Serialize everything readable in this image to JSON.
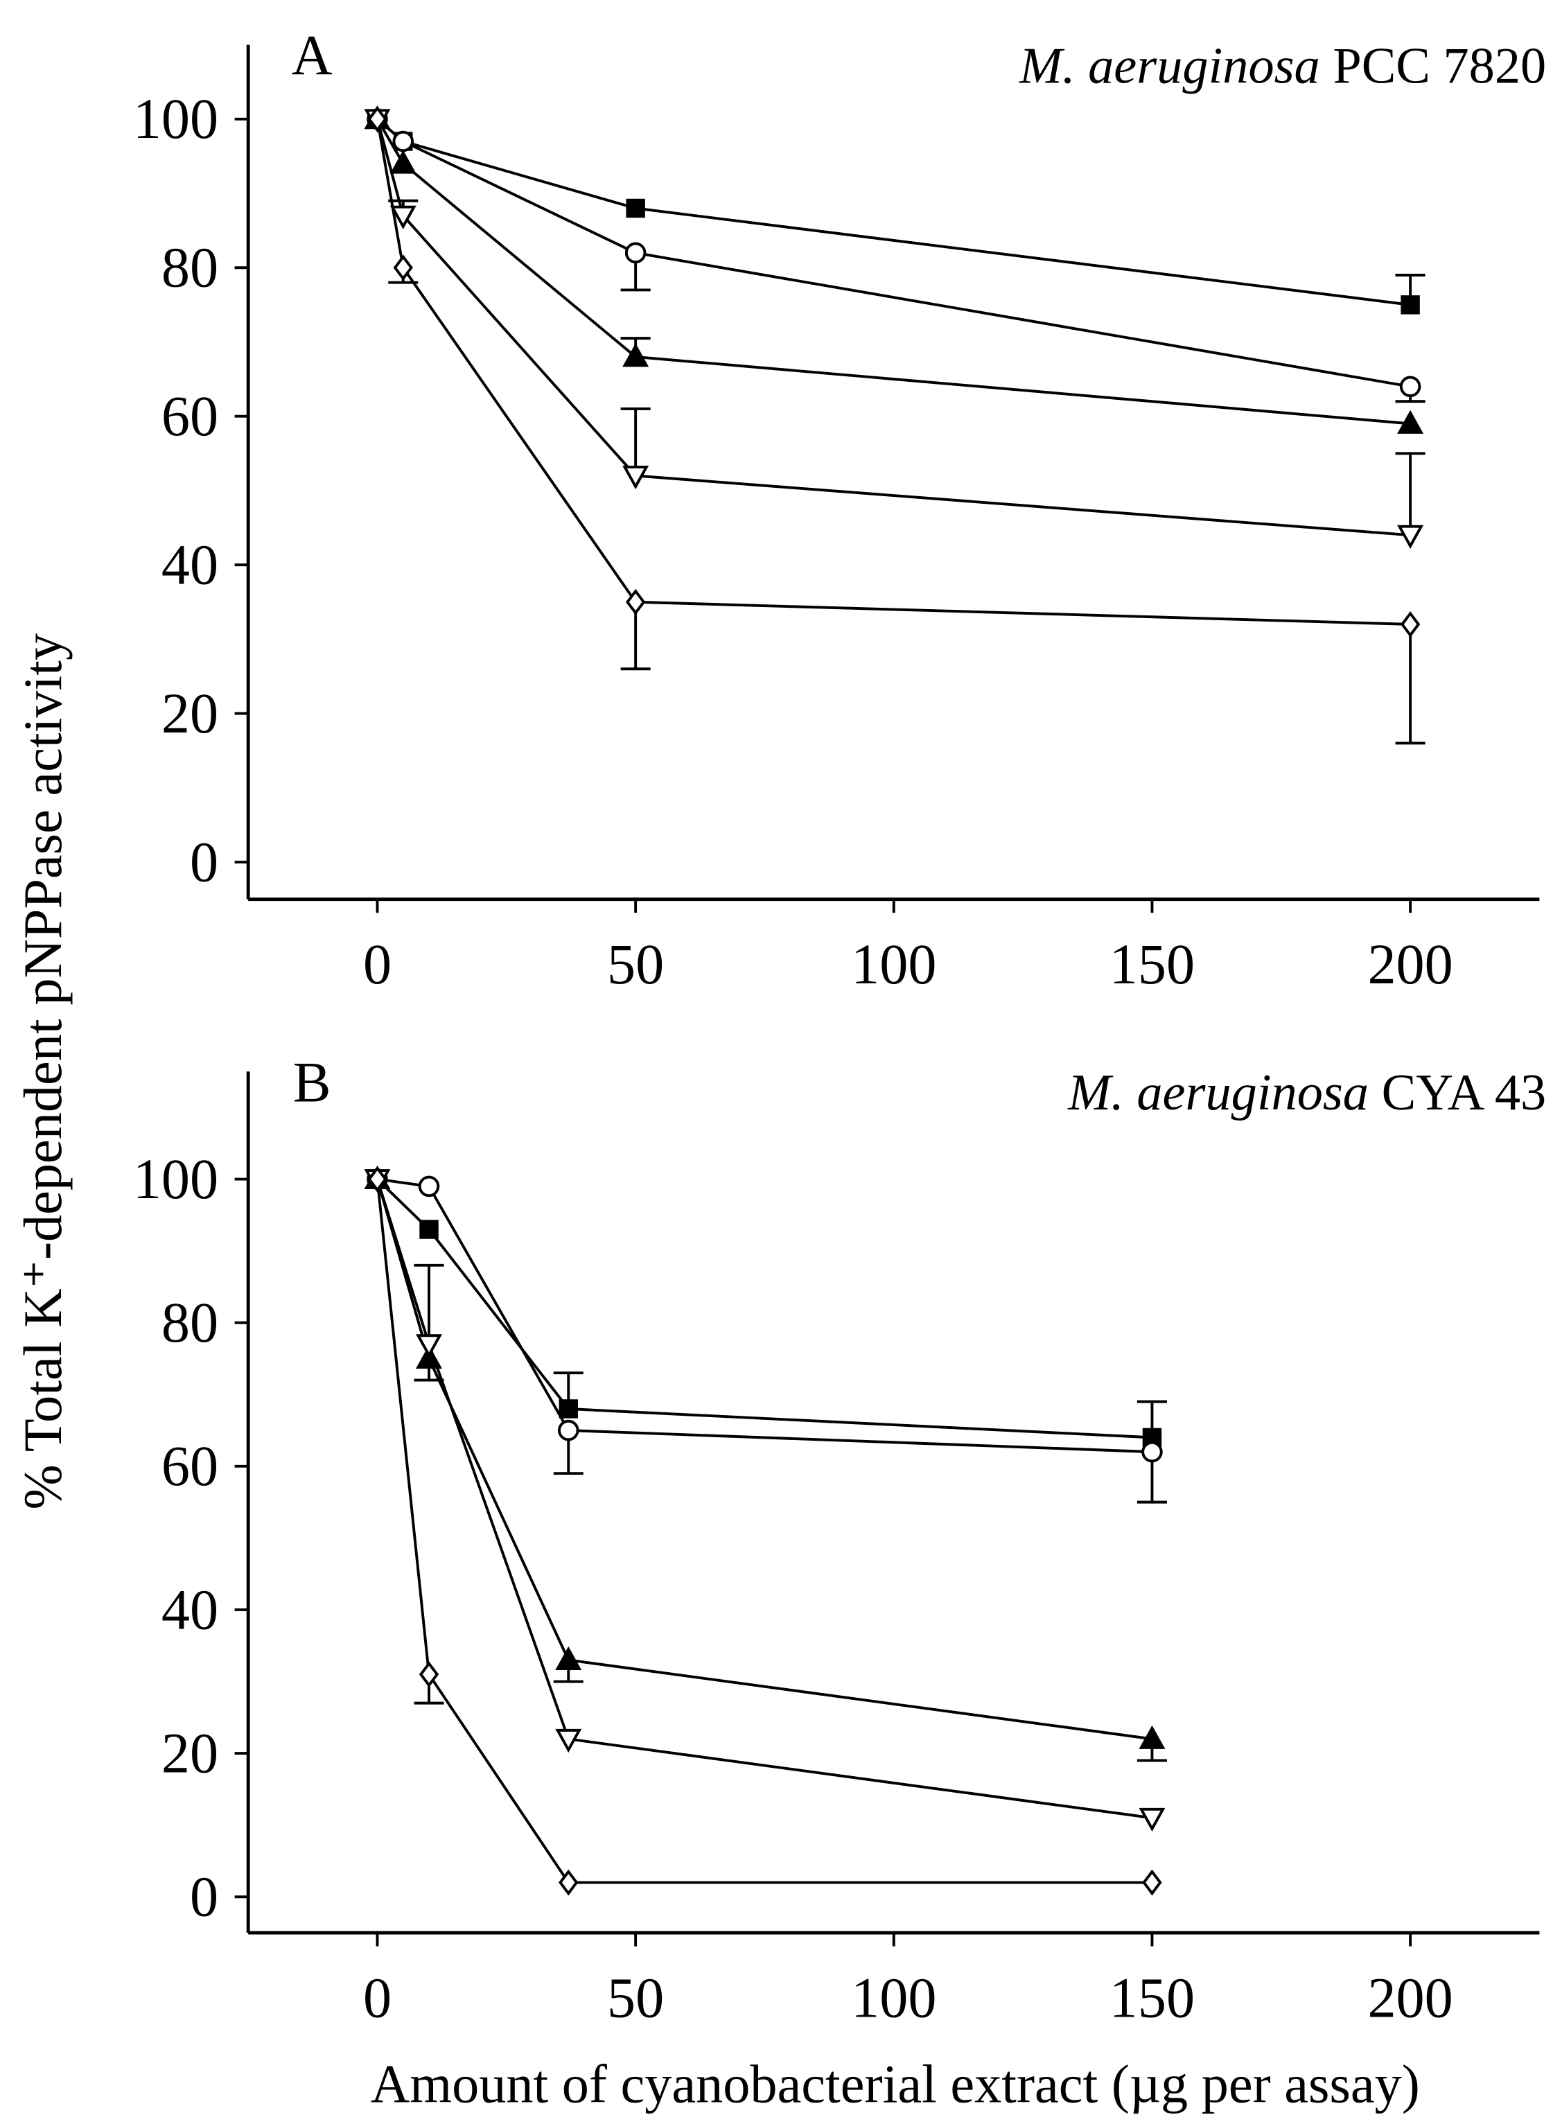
{
  "chart_data": [
    {
      "type": "line",
      "panel": "A",
      "species": "M. aeruginosa",
      "strain": "PCC 7820",
      "ylabel": "% Total K⁺-dependent pNPPase activity",
      "x": [
        0,
        5,
        50,
        200
      ],
      "xlim": [
        -25,
        225
      ],
      "xticks": [
        0,
        50,
        100,
        150,
        200
      ],
      "ylim": [
        -5,
        110
      ],
      "yticks": [
        0,
        20,
        40,
        60,
        80,
        100
      ],
      "color": "#000000",
      "series": [
        {
          "marker": "square-filled",
          "error_direction": "up",
          "values": [
            100,
            97,
            88,
            75
          ],
          "errors": [
            null,
            null,
            null,
            4
          ]
        },
        {
          "marker": "circle-open",
          "error_direction": "down",
          "values": [
            100,
            97,
            82,
            64
          ],
          "errors": [
            null,
            null,
            5,
            2
          ]
        },
        {
          "marker": "triangle-filled",
          "error_direction": "up",
          "values": [
            100,
            94,
            68,
            59
          ],
          "errors": [
            null,
            null,
            2.5,
            null
          ]
        },
        {
          "marker": "triangle-down-open",
          "error_direction": "up",
          "values": [
            100,
            87,
            52,
            44
          ],
          "errors": [
            null,
            2,
            9,
            11
          ]
        },
        {
          "marker": "diamond-open",
          "error_direction": "down",
          "values": [
            100,
            80,
            35,
            32
          ],
          "errors": [
            null,
            2,
            9,
            16
          ]
        }
      ]
    },
    {
      "type": "line",
      "panel": "B",
      "species": "M. aeruginosa",
      "strain": "CYA 43",
      "xlabel": "Amount of cyanobacterial extract (µg per assay)",
      "x": [
        0,
        10,
        37,
        150
      ],
      "xlim": [
        -25,
        225
      ],
      "xticks": [
        0,
        50,
        100,
        150,
        200
      ],
      "ylim": [
        -5,
        115
      ],
      "yticks": [
        0,
        20,
        40,
        60,
        80,
        100
      ],
      "color": "#000000",
      "series": [
        {
          "marker": "square-filled",
          "error_direction": "up",
          "values": [
            100,
            93,
            68,
            64
          ],
          "errors": [
            null,
            null,
            5,
            5
          ]
        },
        {
          "marker": "circle-open",
          "error_direction": "down",
          "values": [
            100,
            99,
            65,
            62
          ],
          "errors": [
            null,
            null,
            6,
            7
          ]
        },
        {
          "marker": "triangle-filled",
          "error_direction": "down",
          "values": [
            100,
            75,
            33,
            22
          ],
          "errors": [
            null,
            3,
            3,
            3
          ]
        },
        {
          "marker": "triangle-down-open",
          "error_direction": "up",
          "values": [
            100,
            77,
            22,
            11
          ],
          "errors": [
            null,
            11,
            null,
            null
          ]
        },
        {
          "marker": "diamond-open",
          "error_direction": "down",
          "values": [
            100,
            31,
            2,
            2
          ],
          "errors": [
            null,
            4,
            null,
            null
          ]
        }
      ]
    }
  ]
}
